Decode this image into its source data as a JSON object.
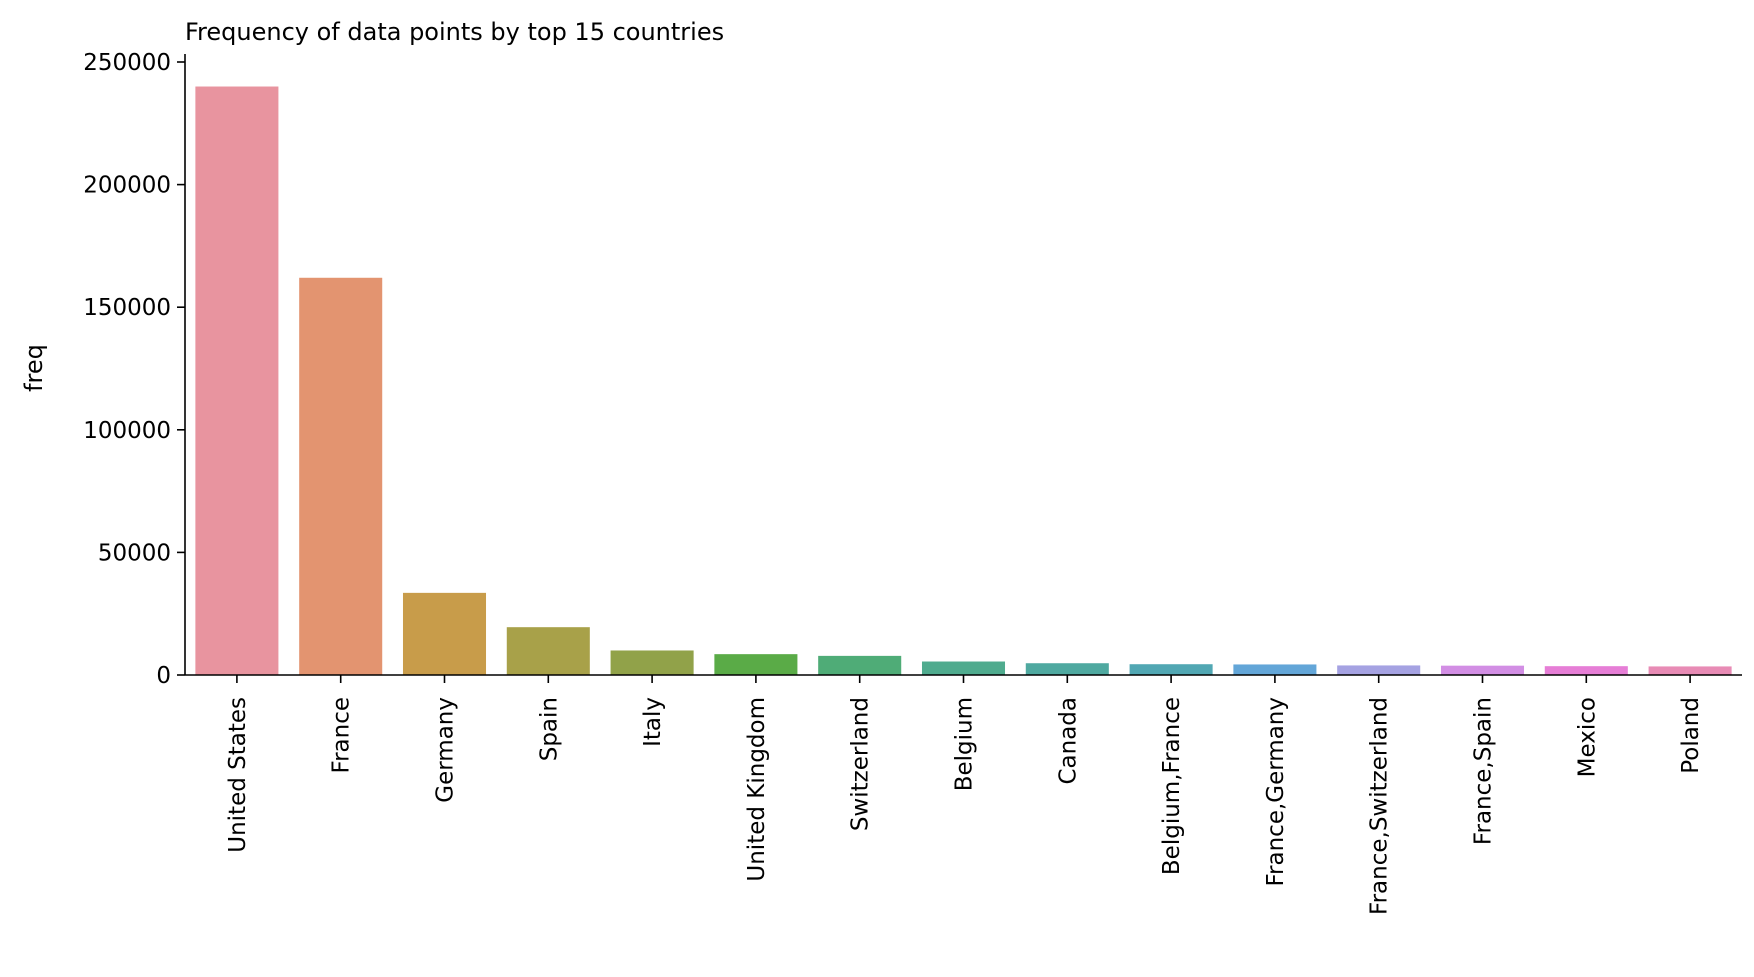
{
  "chart_data": {
    "type": "bar",
    "title": "Frequency of data points by top 15 countries",
    "xlabel": "",
    "ylabel": "freq",
    "ylim": [
      0,
      250000
    ],
    "yticks": [
      0,
      50000,
      100000,
      150000,
      200000,
      250000
    ],
    "grid": false,
    "categories": [
      "United States",
      "France",
      "Germany",
      "Spain",
      "Italy",
      "United Kingdom",
      "Switzerland",
      "Belgium",
      "Canada",
      "Belgium,France",
      "France,Germany",
      "France,Switzerland",
      "France,Spain",
      "Mexico",
      "Poland"
    ],
    "values": [
      240000,
      162000,
      33500,
      19500,
      10000,
      8500,
      7800,
      5500,
      4800,
      4400,
      4300,
      3900,
      3800,
      3600,
      3500
    ],
    "colors": [
      "#e8949f",
      "#e39470",
      "#c89c4a",
      "#a8a149",
      "#91a249",
      "#5aab47",
      "#4fac77",
      "#4fab8e",
      "#4fa9a0",
      "#51a7b3",
      "#63a6d8",
      "#a5a2e2",
      "#d28ee4",
      "#e67ed6",
      "#e88bb5"
    ]
  }
}
